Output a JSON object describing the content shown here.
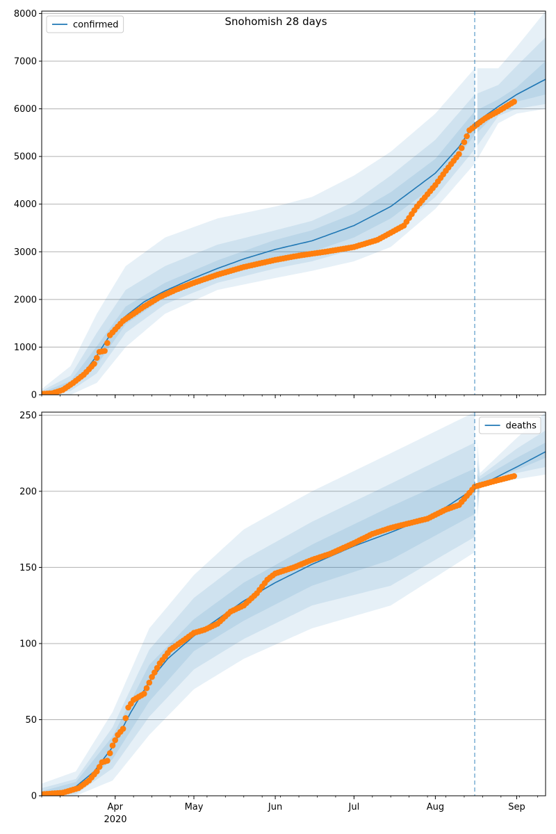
{
  "figure": {
    "title": "Snohomish 28 days"
  },
  "colors": {
    "model": "#1f77b4",
    "observed": "#ff7f0e",
    "band": "#1f77b4",
    "grid": "#b0b0b0"
  },
  "x_axis": {
    "month_ticks": [
      {
        "date": "2020-04-01",
        "label": "Apr"
      },
      {
        "date": "2020-05-01",
        "label": "May"
      },
      {
        "date": "2020-06-01",
        "label": "Jun"
      },
      {
        "date": "2020-07-01",
        "label": "Jul"
      },
      {
        "date": "2020-08-01",
        "label": "Aug"
      },
      {
        "date": "2020-09-01",
        "label": "Sep"
      }
    ],
    "year_label": "2020",
    "range": [
      "2020-03-04",
      "2020-09-12"
    ]
  },
  "forecast_start": "2020-08-16",
  "chart_data": [
    {
      "type": "line",
      "title": "Snohomish 28 days",
      "legend": {
        "label": "confirmed",
        "placement": "top-left"
      },
      "ylim": [
        0,
        8050
      ],
      "yticks": [
        0,
        1000,
        2000,
        3000,
        4000,
        5000,
        6000,
        7000,
        8000
      ],
      "grid": "horizontal",
      "model_series": {
        "name": "confirmed",
        "points": [
          [
            "2020-03-04",
            20
          ],
          [
            "2020-03-10",
            60
          ],
          [
            "2020-03-15",
            200
          ],
          [
            "2020-03-20",
            450
          ],
          [
            "2020-03-25",
            820
          ],
          [
            "2020-03-30",
            1250
          ],
          [
            "2020-04-05",
            1650
          ],
          [
            "2020-04-12",
            1950
          ],
          [
            "2020-04-20",
            2180
          ],
          [
            "2020-05-01",
            2450
          ],
          [
            "2020-05-10",
            2650
          ],
          [
            "2020-05-20",
            2850
          ],
          [
            "2020-06-01",
            3050
          ],
          [
            "2020-06-15",
            3230
          ],
          [
            "2020-07-01",
            3550
          ],
          [
            "2020-07-15",
            3950
          ],
          [
            "2020-08-01",
            4650
          ],
          [
            "2020-08-10",
            5200
          ],
          [
            "2020-08-16",
            5700
          ],
          [
            "2020-08-25",
            6050
          ],
          [
            "2020-09-01",
            6300
          ],
          [
            "2020-09-12",
            6620
          ]
        ]
      },
      "bands": [
        {
          "name": "band_outer",
          "points": [
            [
              "2020-03-04",
              0,
              120
            ],
            [
              "2020-03-15",
              0,
              600
            ],
            [
              "2020-03-25",
              250,
              1700
            ],
            [
              "2020-04-05",
              1000,
              2700
            ],
            [
              "2020-04-20",
              1700,
              3300
            ],
            [
              "2020-05-10",
              2200,
              3700
            ],
            [
              "2020-06-01",
              2450,
              3950
            ],
            [
              "2020-06-15",
              2600,
              4150
            ],
            [
              "2020-07-01",
              2800,
              4600
            ],
            [
              "2020-07-15",
              3100,
              5100
            ],
            [
              "2020-08-01",
              3900,
              5900
            ],
            [
              "2020-08-16",
              4850,
              6850
            ],
            [
              "2020-08-25",
              5700,
              6850
            ],
            [
              "2020-09-01",
              5900,
              7300
            ],
            [
              "2020-09-12",
              6000,
              8050
            ]
          ]
        },
        {
          "name": "band_mid",
          "points": [
            [
              "2020-03-04",
              0,
              80
            ],
            [
              "2020-03-15",
              80,
              400
            ],
            [
              "2020-03-25",
              450,
              1300
            ],
            [
              "2020-04-05",
              1300,
              2200
            ],
            [
              "2020-04-20",
              1900,
              2700
            ],
            [
              "2020-05-10",
              2350,
              3150
            ],
            [
              "2020-06-01",
              2650,
              3450
            ],
            [
              "2020-06-15",
              2800,
              3650
            ],
            [
              "2020-07-01",
              3050,
              4050
            ],
            [
              "2020-07-15",
              3400,
              4600
            ],
            [
              "2020-08-01",
              4150,
              5350
            ],
            [
              "2020-08-16",
              5150,
              6300
            ],
            [
              "2020-08-25",
              5850,
              6500
            ],
            [
              "2020-09-01",
              6000,
              6900
            ],
            [
              "2020-09-12",
              6100,
              7500
            ]
          ]
        },
        {
          "name": "band_inner",
          "points": [
            [
              "2020-03-04",
              5,
              50
            ],
            [
              "2020-03-15",
              130,
              290
            ],
            [
              "2020-03-25",
              620,
              1020
            ],
            [
              "2020-04-05",
              1480,
              1850
            ],
            [
              "2020-04-20",
              2050,
              2350
            ],
            [
              "2020-05-10",
              2500,
              2820
            ],
            [
              "2020-06-01",
              2850,
              3250
            ],
            [
              "2020-06-15",
              3000,
              3450
            ],
            [
              "2020-07-01",
              3300,
              3800
            ],
            [
              "2020-07-15",
              3700,
              4250
            ],
            [
              "2020-08-01",
              4400,
              4950
            ],
            [
              "2020-08-16",
              5450,
              5950
            ],
            [
              "2020-08-25",
              5950,
              6200
            ],
            [
              "2020-09-01",
              6150,
              6450
            ],
            [
              "2020-09-12",
              6300,
              7000
            ]
          ]
        }
      ],
      "observed_series": {
        "name": "observed",
        "points": [
          [
            "2020-03-04",
            20
          ],
          [
            "2020-03-08",
            30
          ],
          [
            "2020-03-12",
            100
          ],
          [
            "2020-03-16",
            250
          ],
          [
            "2020-03-20",
            420
          ],
          [
            "2020-03-24",
            650
          ],
          [
            "2020-03-26",
            900
          ],
          [
            "2020-03-28",
            920
          ],
          [
            "2020-03-30",
            1250
          ],
          [
            "2020-04-01",
            1370
          ],
          [
            "2020-04-04",
            1550
          ],
          [
            "2020-04-08",
            1700
          ],
          [
            "2020-04-12",
            1850
          ],
          [
            "2020-04-18",
            2050
          ],
          [
            "2020-04-24",
            2200
          ],
          [
            "2020-05-01",
            2350
          ],
          [
            "2020-05-10",
            2520
          ],
          [
            "2020-05-20",
            2680
          ],
          [
            "2020-06-01",
            2830
          ],
          [
            "2020-06-10",
            2920
          ],
          [
            "2020-06-20",
            3000
          ],
          [
            "2020-07-01",
            3100
          ],
          [
            "2020-07-10",
            3250
          ],
          [
            "2020-07-20",
            3550
          ],
          [
            "2020-07-25",
            3950
          ],
          [
            "2020-08-01",
            4400
          ],
          [
            "2020-08-05",
            4700
          ],
          [
            "2020-08-10",
            5050
          ],
          [
            "2020-08-14",
            5550
          ],
          [
            "2020-08-20",
            5800
          ],
          [
            "2020-08-25",
            5950
          ],
          [
            "2020-08-31",
            6150
          ]
        ]
      }
    },
    {
      "type": "line",
      "title": "",
      "legend": {
        "label": "deaths",
        "placement": "top-right"
      },
      "ylim": [
        0,
        252
      ],
      "yticks": [
        0,
        50,
        100,
        150,
        200,
        250
      ],
      "grid": "horizontal",
      "model_series": {
        "name": "deaths",
        "points": [
          [
            "2020-03-04",
            1
          ],
          [
            "2020-03-10",
            2
          ],
          [
            "2020-03-17",
            6
          ],
          [
            "2020-03-24",
            16
          ],
          [
            "2020-03-31",
            32
          ],
          [
            "2020-04-07",
            55
          ],
          [
            "2020-04-14",
            75
          ],
          [
            "2020-04-21",
            90
          ],
          [
            "2020-05-01",
            105
          ],
          [
            "2020-05-10",
            116
          ],
          [
            "2020-05-20",
            128
          ],
          [
            "2020-06-01",
            140
          ],
          [
            "2020-06-15",
            152
          ],
          [
            "2020-07-01",
            164
          ],
          [
            "2020-07-15",
            173
          ],
          [
            "2020-08-01",
            185
          ],
          [
            "2020-08-16",
            202
          ],
          [
            "2020-09-01",
            216
          ],
          [
            "2020-09-12",
            226
          ]
        ]
      },
      "bands": [
        {
          "name": "band_outer",
          "points": [
            [
              "2020-03-04",
              0,
              8
            ],
            [
              "2020-03-17",
              0,
              16
            ],
            [
              "2020-03-31",
              10,
              55
            ],
            [
              "2020-04-14",
              40,
              110
            ],
            [
              "2020-05-01",
              70,
              145
            ],
            [
              "2020-05-20",
              90,
              175
            ],
            [
              "2020-06-15",
              110,
              200
            ],
            [
              "2020-07-15",
              125,
              225
            ],
            [
              "2020-08-16",
              160,
              252
            ],
            [
              "2020-08-18",
              203,
              212
            ],
            [
              "2020-09-01",
              208,
              235
            ],
            [
              "2020-09-12",
              211,
              252
            ]
          ]
        },
        {
          "name": "band_mid",
          "points": [
            [
              "2020-03-04",
              0,
              5
            ],
            [
              "2020-03-17",
              1,
              11
            ],
            [
              "2020-03-31",
              18,
              45
            ],
            [
              "2020-04-14",
              52,
              96
            ],
            [
              "2020-05-01",
              83,
              130
            ],
            [
              "2020-05-20",
              103,
              155
            ],
            [
              "2020-06-15",
              125,
              180
            ],
            [
              "2020-07-15",
              138,
              205
            ],
            [
              "2020-08-16",
              170,
              232
            ],
            [
              "2020-08-18",
              204,
              210
            ],
            [
              "2020-09-01",
              212,
              228
            ],
            [
              "2020-09-12",
              216,
              240
            ]
          ]
        },
        {
          "name": "band_inner",
          "points": [
            [
              "2020-03-04",
              0,
              3
            ],
            [
              "2020-03-17",
              3,
              9
            ],
            [
              "2020-03-31",
              24,
              39
            ],
            [
              "2020-04-14",
              62,
              86
            ],
            [
              "2020-05-01",
              95,
              116
            ],
            [
              "2020-05-20",
              115,
              140
            ],
            [
              "2020-06-15",
              138,
              165
            ],
            [
              "2020-07-15",
              155,
              190
            ],
            [
              "2020-08-16",
              185,
              215
            ],
            [
              "2020-08-18",
              205,
              208
            ],
            [
              "2020-09-01",
              214,
              222
            ],
            [
              "2020-09-12",
              222,
              232
            ]
          ]
        }
      ],
      "observed_series": {
        "name": "observed",
        "points": [
          [
            "2020-03-04",
            1
          ],
          [
            "2020-03-12",
            2
          ],
          [
            "2020-03-18",
            5
          ],
          [
            "2020-03-22",
            10
          ],
          [
            "2020-03-25",
            16
          ],
          [
            "2020-03-27",
            22
          ],
          [
            "2020-03-29",
            23
          ],
          [
            "2020-03-31",
            33
          ],
          [
            "2020-04-02",
            40
          ],
          [
            "2020-04-04",
            44
          ],
          [
            "2020-04-06",
            58
          ],
          [
            "2020-04-08",
            63
          ],
          [
            "2020-04-12",
            67
          ],
          [
            "2020-04-15",
            78
          ],
          [
            "2020-04-18",
            87
          ],
          [
            "2020-04-22",
            96
          ],
          [
            "2020-04-27",
            102
          ],
          [
            "2020-05-01",
            107
          ],
          [
            "2020-05-05",
            109
          ],
          [
            "2020-05-10",
            113
          ],
          [
            "2020-05-15",
            121
          ],
          [
            "2020-05-20",
            125
          ],
          [
            "2020-05-25",
            133
          ],
          [
            "2020-05-29",
            142
          ],
          [
            "2020-06-01",
            146
          ],
          [
            "2020-06-08",
            150
          ],
          [
            "2020-06-15",
            155
          ],
          [
            "2020-06-22",
            159
          ],
          [
            "2020-07-01",
            166
          ],
          [
            "2020-07-08",
            172
          ],
          [
            "2020-07-15",
            176
          ],
          [
            "2020-07-22",
            179
          ],
          [
            "2020-07-29",
            182
          ],
          [
            "2020-08-05",
            188
          ],
          [
            "2020-08-10",
            191
          ],
          [
            "2020-08-16",
            203
          ],
          [
            "2020-08-22",
            206
          ],
          [
            "2020-08-31",
            210
          ]
        ]
      }
    }
  ]
}
